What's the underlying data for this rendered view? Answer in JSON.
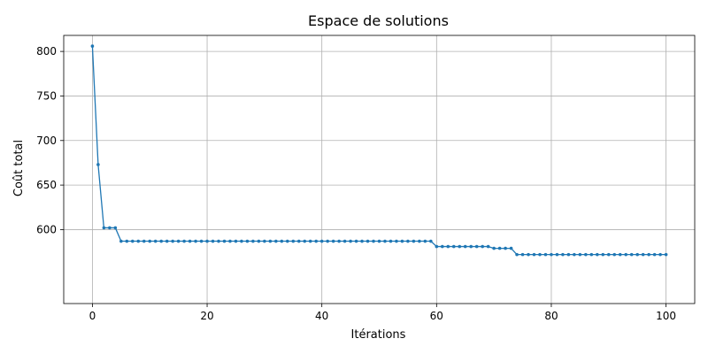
{
  "chart_data": {
    "type": "line",
    "title": "Espace de solutions",
    "xlabel": "Itérations",
    "ylabel": "Coût total",
    "xlim": [
      -5,
      105
    ],
    "ylim": [
      517,
      818
    ],
    "xticks": [
      0,
      20,
      40,
      60,
      80,
      100
    ],
    "yticks": [
      600,
      650,
      700,
      750,
      800
    ],
    "grid": true,
    "series": [
      {
        "color": "#1f77b4",
        "marker": "circle",
        "x": [
          0,
          1,
          2,
          3,
          4,
          5,
          6,
          7,
          8,
          9,
          10,
          11,
          12,
          13,
          14,
          15,
          16,
          17,
          18,
          19,
          20,
          21,
          22,
          23,
          24,
          25,
          26,
          27,
          28,
          29,
          30,
          31,
          32,
          33,
          34,
          35,
          36,
          37,
          38,
          39,
          40,
          41,
          42,
          43,
          44,
          45,
          46,
          47,
          48,
          49,
          50,
          51,
          52,
          53,
          54,
          55,
          56,
          57,
          58,
          59,
          60,
          61,
          62,
          63,
          64,
          65,
          66,
          67,
          68,
          69,
          70,
          71,
          72,
          73,
          74,
          75,
          76,
          77,
          78,
          79,
          80,
          81,
          82,
          83,
          84,
          85,
          86,
          87,
          88,
          89,
          90,
          91,
          92,
          93,
          94,
          95,
          96,
          97,
          98,
          99,
          100
        ],
        "y": [
          806,
          673,
          602,
          602,
          602,
          587,
          587,
          587,
          587,
          587,
          587,
          587,
          587,
          587,
          587,
          587,
          587,
          587,
          587,
          587,
          587,
          587,
          587,
          587,
          587,
          587,
          587,
          587,
          587,
          587,
          587,
          587,
          587,
          587,
          587,
          587,
          587,
          587,
          587,
          587,
          587,
          587,
          587,
          587,
          587,
          587,
          587,
          587,
          587,
          587,
          587,
          587,
          587,
          587,
          587,
          587,
          587,
          587,
          587,
          587,
          581,
          581,
          581,
          581,
          581,
          581,
          581,
          581,
          581,
          581,
          579,
          579,
          579,
          579,
          572,
          572,
          572,
          572,
          572,
          572,
          572,
          572,
          572,
          572,
          572,
          572,
          572,
          572,
          572,
          572,
          572,
          572,
          572,
          572,
          572,
          572,
          572,
          572,
          572,
          572,
          572
        ]
      }
    ]
  }
}
